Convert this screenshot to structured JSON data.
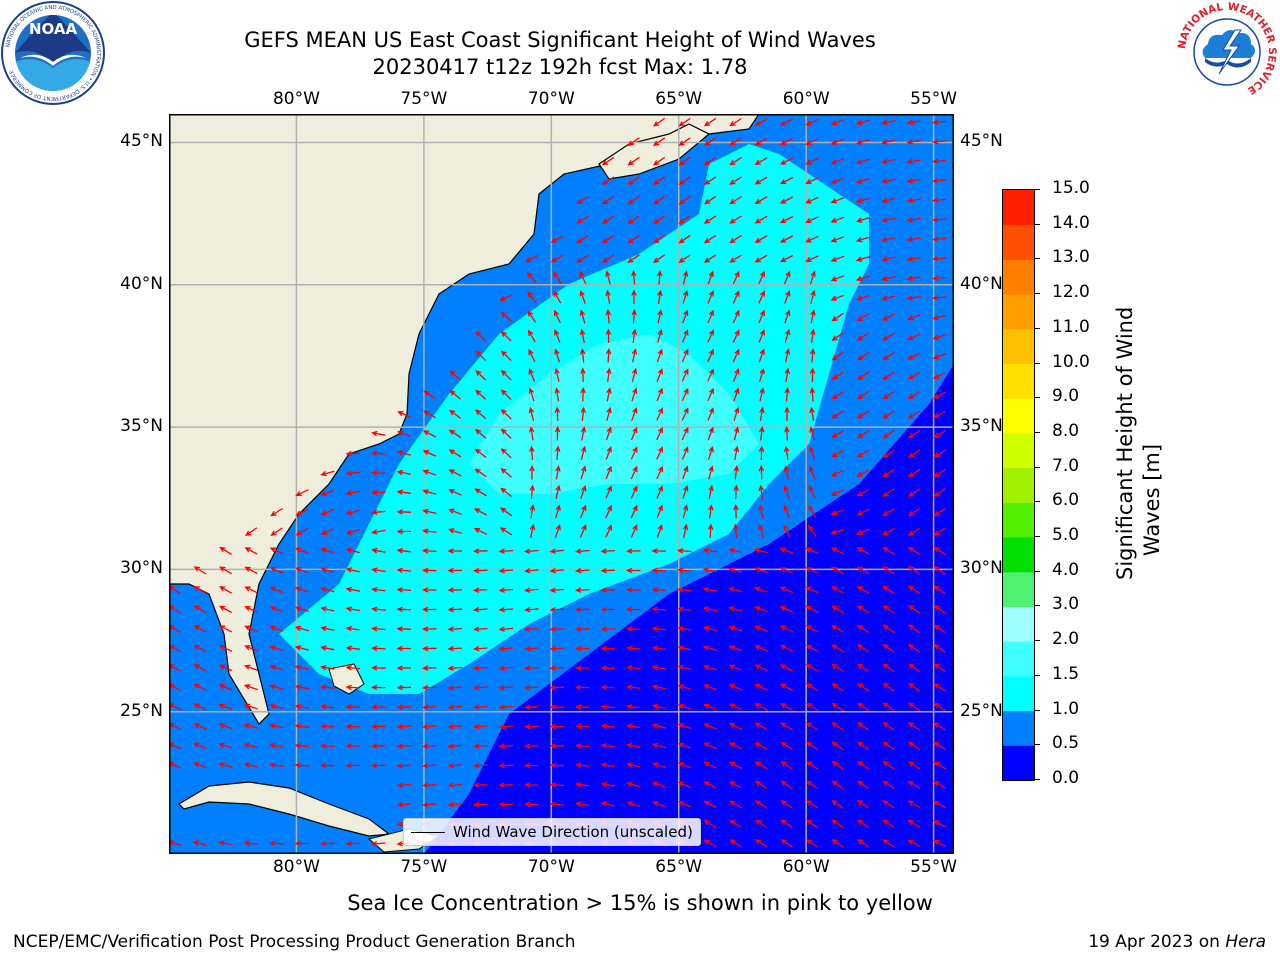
{
  "title": {
    "line1": "GEFS MEAN US East Coast Significant Height of Wind Waves",
    "line2": "20230417 t12z 192h fcst   Max: 1.78"
  },
  "logos": {
    "left": {
      "name": "NOAA",
      "ring_text": "NATIONAL OCEANIC AND ATMOSPHERIC ADMINISTRATION • U.S. DEPARTMENT OF COMMERCE"
    },
    "right": {
      "ring_text": "NATIONAL WEATHER SERVICE"
    }
  },
  "map": {
    "lon_range": [
      -85,
      -54.2
    ],
    "lat_range": [
      20,
      46
    ],
    "lon_ticks": [
      "80°W",
      "75°W",
      "70°W",
      "65°W",
      "60°W",
      "55°W"
    ],
    "lat_ticks": [
      "45°N",
      "40°N",
      "35°N",
      "30°N",
      "25°N"
    ],
    "grid": true,
    "colors": {
      "land": "#efeedc",
      "band_0_0_5": "#0000ff",
      "band_0_5_1_0": "#0080ff",
      "band_1_0_1_5": "#00ffff",
      "band_1_5_2_0": "#40ffff",
      "arrow": "#ff0000",
      "grid": "#b0b0b0"
    }
  },
  "colorbar": {
    "title": "Significant Height of Wind Waves [m]",
    "title_line1": "Significant Height of Wind",
    "title_line2": "Waves [m]",
    "ticks": [
      "15.0",
      "14.0",
      "13.0",
      "12.0",
      "11.0",
      "10.0",
      "9.0",
      "8.0",
      "7.0",
      "6.0",
      "5.0",
      "4.0",
      "3.0",
      "2.0",
      "1.5",
      "1.0",
      "0.5",
      "0.0"
    ],
    "colors_bottom_to_top": [
      "#0000ff",
      "#0080ff",
      "#00ffff",
      "#40ffff",
      "#a0ffff",
      "#50f070",
      "#00e000",
      "#50f000",
      "#a0f000",
      "#d0ff00",
      "#ffff00",
      "#ffe000",
      "#ffc000",
      "#ffa000",
      "#ff8000",
      "#ff5000",
      "#ff2000"
    ]
  },
  "legend": {
    "label": "Wind Wave Direction (unscaled)"
  },
  "subtitle": "Sea Ice Concentration > 15% is shown in pink to yellow",
  "footer": {
    "left": "NCEP/EMC/Verification Post Processing Product Generation Branch",
    "right_date": "19 Apr 2023 on ",
    "right_machine": "Hera"
  }
}
